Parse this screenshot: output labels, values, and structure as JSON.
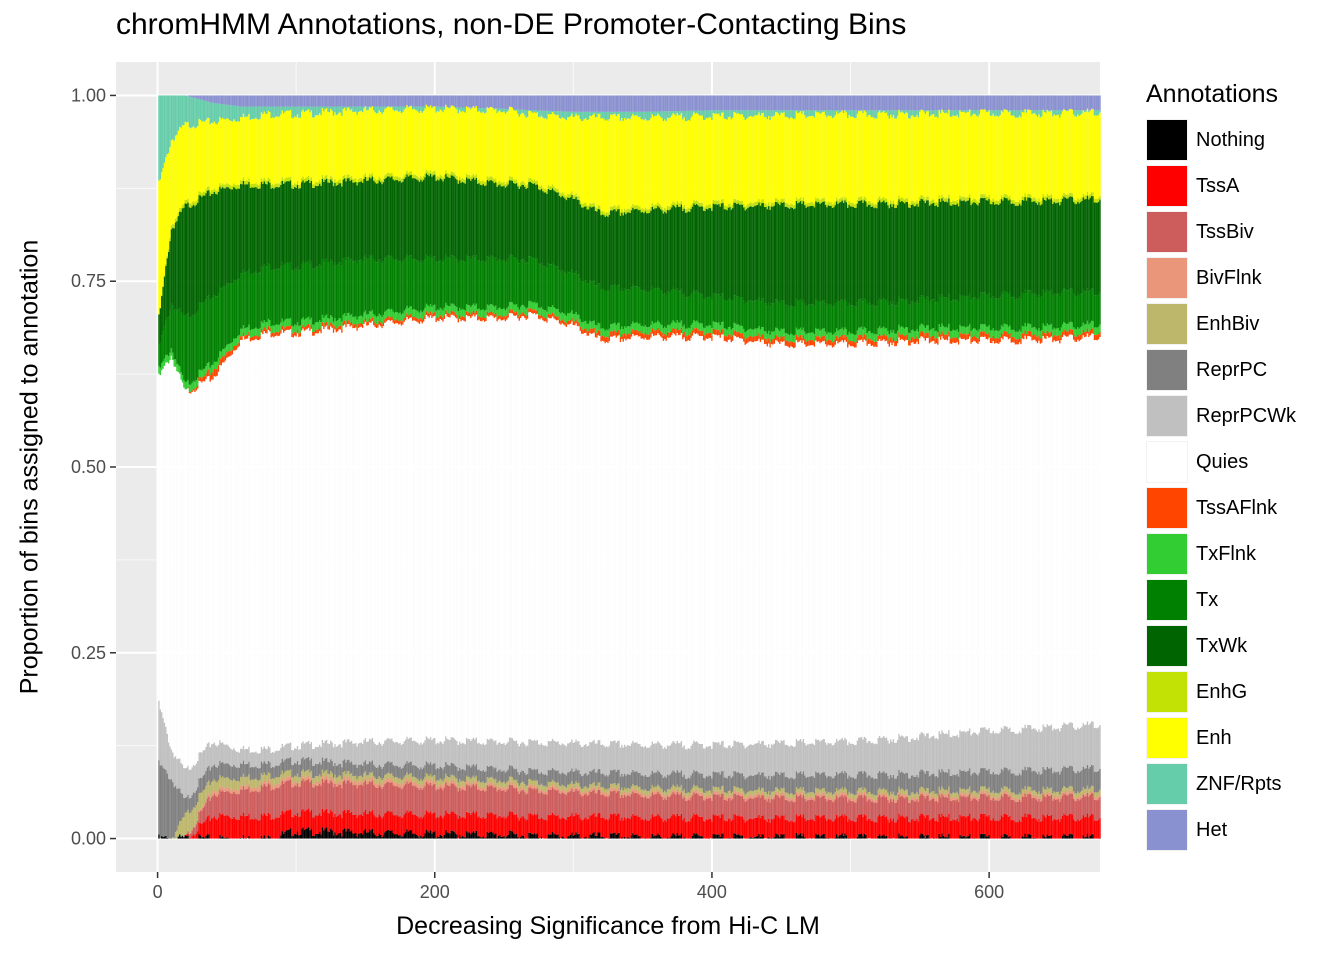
{
  "chart_data": {
    "type": "bar",
    "stacked": true,
    "title": "chromHMM Annotations, non-DE Promoter-Contacting Bins",
    "xlabel": "Decreasing Significance from Hi-C LM",
    "ylabel": "Proportion of bins assigned to annotation",
    "xlim": [
      -30,
      680
    ],
    "ylim": [
      -0.045,
      1.045
    ],
    "x_ticks": [
      0,
      200,
      400,
      600
    ],
    "x_tick_labels": [
      "0",
      "200",
      "400",
      "600"
    ],
    "y_ticks": [
      0,
      0.25,
      0.5,
      0.75,
      1.0
    ],
    "y_tick_labels": [
      "0.00",
      "0.25",
      "0.50",
      "0.75",
      "1.00"
    ],
    "grid": true,
    "legend": {
      "title": "Annotations",
      "position": "right"
    },
    "series": [
      {
        "name": "Nothing",
        "color": "#000000"
      },
      {
        "name": "TssA",
        "color": "#ff0000"
      },
      {
        "name": "TssBiv",
        "color": "#cd5c5c"
      },
      {
        "name": "BivFlnk",
        "color": "#e9967a"
      },
      {
        "name": "EnhBiv",
        "color": "#bdb76b"
      },
      {
        "name": "ReprPC",
        "color": "#808080"
      },
      {
        "name": "ReprPCWk",
        "color": "#c0c0c0"
      },
      {
        "name": "Quies",
        "color": "#ffffff"
      },
      {
        "name": "TssAFlnk",
        "color": "#ff4500"
      },
      {
        "name": "TxFlnk",
        "color": "#32cd32"
      },
      {
        "name": "Tx",
        "color": "#008000"
      },
      {
        "name": "TxWk",
        "color": "#006400"
      },
      {
        "name": "EnhG",
        "color": "#c2e105"
      },
      {
        "name": "Enh",
        "color": "#ffff00"
      },
      {
        "name": "ZNF/Rpts",
        "color": "#66cdaa"
      },
      {
        "name": "Het",
        "color": "#8a91d0"
      }
    ],
    "x_profile": [
      1,
      10,
      20,
      40,
      60,
      80,
      100,
      150,
      200,
      250,
      270,
      300,
      320,
      350,
      400,
      450,
      500,
      550,
      600,
      650,
      680
    ],
    "cumulative_top": {
      "Nothing": [
        0.0,
        0.0,
        0.0,
        0.0,
        0.0,
        0.0,
        0.01,
        0.008,
        0.006,
        0.005,
        0.004,
        0.003,
        0.003,
        0.002,
        0.002,
        0.002,
        0.001,
        0.001,
        0.001,
        0.001,
        0.001
      ],
      "TssA": [
        0.0,
        0.0,
        0.0,
        0.03,
        0.03,
        0.03,
        0.035,
        0.033,
        0.032,
        0.031,
        0.03,
        0.029,
        0.029,
        0.028,
        0.028,
        0.027,
        0.027,
        0.028,
        0.028,
        0.028,
        0.028
      ],
      "TssBiv": [
        0.0,
        0.0,
        0.0,
        0.06,
        0.065,
        0.07,
        0.075,
        0.073,
        0.07,
        0.067,
        0.065,
        0.062,
        0.06,
        0.058,
        0.056,
        0.054,
        0.053,
        0.054,
        0.055,
        0.055,
        0.056
      ],
      "BivFlnk": [
        0.0,
        0.0,
        0.0,
        0.065,
        0.07,
        0.075,
        0.08,
        0.078,
        0.075,
        0.071,
        0.069,
        0.066,
        0.064,
        0.062,
        0.06,
        0.058,
        0.057,
        0.058,
        0.059,
        0.059,
        0.06
      ],
      "EnhBiv": [
        0.0,
        0.0,
        0.03,
        0.08,
        0.082,
        0.085,
        0.088,
        0.085,
        0.082,
        0.078,
        0.076,
        0.072,
        0.07,
        0.068,
        0.066,
        0.064,
        0.063,
        0.064,
        0.065,
        0.065,
        0.066
      ],
      "ReprPC": [
        0.1,
        0.08,
        0.05,
        0.1,
        0.1,
        0.1,
        0.105,
        0.1,
        0.098,
        0.093,
        0.091,
        0.089,
        0.088,
        0.087,
        0.086,
        0.085,
        0.085,
        0.087,
        0.09,
        0.092,
        0.094
      ],
      "ReprPCWk": [
        0.18,
        0.12,
        0.09,
        0.13,
        0.12,
        0.12,
        0.125,
        0.13,
        0.132,
        0.13,
        0.13,
        0.128,
        0.127,
        0.126,
        0.126,
        0.128,
        0.13,
        0.137,
        0.145,
        0.15,
        0.153
      ],
      "Quies": [
        0.62,
        0.65,
        0.6,
        0.62,
        0.67,
        0.68,
        0.68,
        0.69,
        0.7,
        0.7,
        0.705,
        0.69,
        0.67,
        0.675,
        0.675,
        0.665,
        0.665,
        0.67,
        0.67,
        0.672,
        0.675
      ],
      "TssAFlnk": [
        0.62,
        0.65,
        0.6,
        0.63,
        0.675,
        0.685,
        0.685,
        0.695,
        0.705,
        0.705,
        0.71,
        0.695,
        0.677,
        0.682,
        0.682,
        0.672,
        0.672,
        0.677,
        0.677,
        0.679,
        0.682
      ],
      "TxFlnk": [
        0.63,
        0.66,
        0.61,
        0.64,
        0.685,
        0.695,
        0.695,
        0.705,
        0.715,
        0.715,
        0.72,
        0.705,
        0.687,
        0.692,
        0.692,
        0.682,
        0.682,
        0.687,
        0.687,
        0.689,
        0.692
      ],
      "Tx": [
        0.66,
        0.72,
        0.7,
        0.73,
        0.76,
        0.77,
        0.77,
        0.78,
        0.78,
        0.78,
        0.78,
        0.76,
        0.74,
        0.74,
        0.73,
        0.72,
        0.72,
        0.725,
        0.73,
        0.735,
        0.735
      ],
      "TxWk": [
        0.7,
        0.82,
        0.85,
        0.87,
        0.88,
        0.88,
        0.88,
        0.885,
        0.89,
        0.88,
        0.88,
        0.86,
        0.84,
        0.845,
        0.85,
        0.852,
        0.853,
        0.855,
        0.857,
        0.858,
        0.86
      ],
      "EnhG": [
        0.7,
        0.825,
        0.855,
        0.875,
        0.885,
        0.885,
        0.885,
        0.89,
        0.895,
        0.885,
        0.885,
        0.865,
        0.845,
        0.85,
        0.855,
        0.857,
        0.858,
        0.86,
        0.862,
        0.863,
        0.865
      ],
      "Enh": [
        0.88,
        0.94,
        0.96,
        0.965,
        0.97,
        0.975,
        0.975,
        0.98,
        0.982,
        0.98,
        0.975,
        0.97,
        0.97,
        0.97,
        0.972,
        0.973,
        0.974,
        0.975,
        0.976,
        0.976,
        0.977
      ],
      "ZNF/Rpts": [
        1.0,
        1.0,
        1.0,
        0.99,
        0.985,
        0.985,
        0.985,
        0.985,
        0.985,
        0.982,
        0.98,
        0.978,
        0.978,
        0.978,
        0.98,
        0.98,
        0.98,
        0.98,
        0.98,
        0.98,
        0.98
      ],
      "Het": [
        1,
        1,
        1,
        1,
        1,
        1,
        1,
        1,
        1,
        1,
        1,
        1,
        1,
        1,
        1,
        1,
        1,
        1,
        1,
        1,
        1
      ]
    },
    "bar_count": 680
  }
}
